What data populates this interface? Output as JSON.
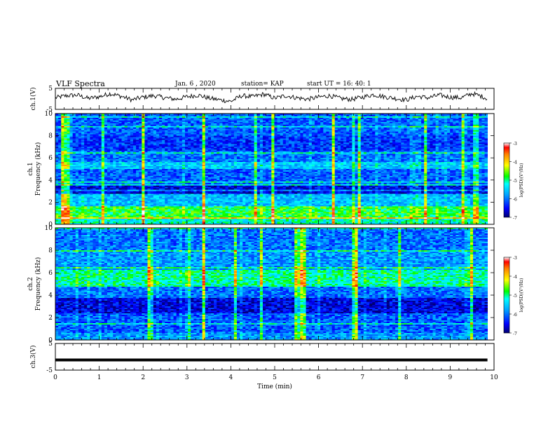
{
  "header": {
    "title": "VLF Spectra",
    "date": "Jan. 6 , 2020",
    "station": "station= KAP",
    "start_time": "start  UT =  16: 40: 1"
  },
  "chart_data": [
    {
      "type": "line",
      "panel": "ch1-waveform",
      "ylabel": "ch.1(V)",
      "ylim": [
        -5,
        5
      ],
      "y_ticks": [
        "5",
        "-5"
      ],
      "xlim": [
        0,
        10
      ],
      "x_end": 9.85,
      "grid": false,
      "color": "#000000",
      "series": [
        {
          "x": [
            0,
            0.25,
            0.5,
            0.75,
            1.0,
            1.25,
            1.5,
            1.75,
            2.0,
            2.25,
            2.5,
            2.75,
            3.0,
            3.25,
            3.5,
            3.75,
            4.0,
            4.25,
            4.5,
            4.75,
            5.0,
            5.25,
            5.5,
            5.75,
            6.0,
            6.25,
            6.5,
            6.75,
            7.0,
            7.25,
            7.5,
            7.75,
            8.0,
            8.25,
            8.5,
            8.75,
            9.0,
            9.25,
            9.5,
            9.75,
            9.85
          ],
          "y": [
            0.5,
            1.5,
            1.8,
            0.2,
            1.0,
            2.5,
            1.2,
            -0.5,
            0.8,
            1.5,
            0.5,
            -0.2,
            1.0,
            1.8,
            0.3,
            -0.5,
            -1.2,
            1.5,
            1.0,
            2.2,
            0.3,
            1.5,
            0.5,
            -0.2,
            0.8,
            1.5,
            0.2,
            -0.3,
            0.8,
            2.0,
            1.0,
            0.2,
            -0.5,
            1.2,
            0.5,
            1.8,
            0.8,
            0.5,
            2.5,
            1.0,
            0.0
          ]
        }
      ]
    },
    {
      "type": "heatmap",
      "panel": "ch1-spectrogram",
      "ylabel": "ch.1 Frequency (kHz)",
      "ylim": [
        0,
        10
      ],
      "y_ticks": [
        "0",
        "2",
        "4",
        "6",
        "8",
        "10"
      ],
      "xlim": [
        0,
        10
      ],
      "x_end": 9.85,
      "colorbar": {
        "label": "log(PSD)(V²/Hz)",
        "range": [
          -7,
          -3
        ],
        "ticks": [
          "-3",
          "-4",
          "-5",
          "-6",
          "-7"
        ]
      },
      "freq_bands": [
        {
          "range": [
            0,
            0.5
          ],
          "level": -5.2
        },
        {
          "range": [
            0.5,
            1.6
          ],
          "level": -4.8
        },
        {
          "range": [
            1.6,
            2.8
          ],
          "level": -5.6
        },
        {
          "range": [
            2.8,
            3.5
          ],
          "level": -6.6
        },
        {
          "range": [
            3.5,
            5.0
          ],
          "level": -6.1
        },
        {
          "range": [
            5.0,
            5.6
          ],
          "level": -5.5
        },
        {
          "range": [
            5.6,
            6.6
          ],
          "level": -6.0
        },
        {
          "range": [
            6.6,
            8.0
          ],
          "level": -6.3
        },
        {
          "range": [
            8.0,
            10.0
          ],
          "level": -6.1
        }
      ]
    },
    {
      "type": "heatmap",
      "panel": "ch2-spectrogram",
      "ylabel": "ch.2 Frequency (kHz)",
      "ylim": [
        0,
        10
      ],
      "y_ticks": [
        "0",
        "2",
        "4",
        "6",
        "8",
        "10"
      ],
      "xlim": [
        0,
        10
      ],
      "x_end": 9.85,
      "colorbar": {
        "label": "log(PSD)(V²/Hz)",
        "range": [
          -7,
          -3
        ],
        "ticks": [
          "-3",
          "-4",
          "-5",
          "-6",
          "-7"
        ]
      },
      "freq_bands": [
        {
          "range": [
            0,
            0.6
          ],
          "level": -5.8
        },
        {
          "range": [
            0.6,
            2.4
          ],
          "level": -6.1
        },
        {
          "range": [
            2.4,
            3.7
          ],
          "level": -6.6
        },
        {
          "range": [
            3.7,
            4.8
          ],
          "level": -6.0
        },
        {
          "range": [
            4.8,
            6.2
          ],
          "level": -5.1
        },
        {
          "range": [
            6.2,
            8.0
          ],
          "level": -5.8
        },
        {
          "range": [
            8.0,
            10.0
          ],
          "level": -6.0
        }
      ]
    },
    {
      "type": "line",
      "panel": "ch3-waveform",
      "ylabel": "ch.3(V)",
      "ylim": [
        -5,
        5
      ],
      "y_ticks": [
        "5",
        "-5"
      ],
      "xlim": [
        0,
        10
      ],
      "x_end": 9.85,
      "xlabel": "Time (min)",
      "x_ticks": [
        "0",
        "1",
        "2",
        "3",
        "4",
        "5",
        "6",
        "7",
        "8",
        "9",
        "10"
      ],
      "color": "#000000",
      "series": [
        {
          "x": [
            0,
            9.85
          ],
          "y": [
            -1.2,
            -1.2
          ]
        }
      ]
    }
  ]
}
